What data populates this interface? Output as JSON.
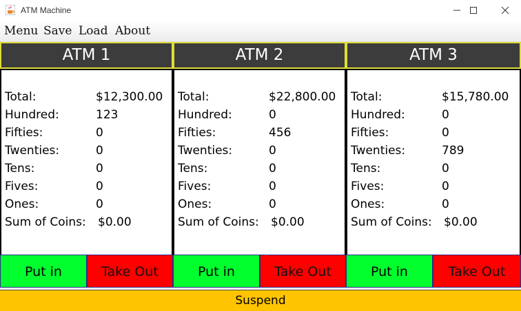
{
  "window": {
    "title": "ATM Machine"
  },
  "menu": [
    "Menu",
    "Save",
    "Load",
    "About"
  ],
  "labels": {
    "total": "Total:",
    "hundred": "Hundred:",
    "fifties": "Fifties:",
    "twenties": "Twenties:",
    "tens": "Tens:",
    "fives": "Fives:",
    "ones": "Ones:",
    "coins": "Sum of Coins:",
    "put_in": "Put in",
    "take_out": "Take Out"
  },
  "atms": [
    {
      "name": "ATM 1",
      "total": "$12,300.00",
      "hundred": "123",
      "fifties": "0",
      "twenties": "0",
      "tens": "0",
      "fives": "0",
      "ones": "0",
      "coins": "$0.00"
    },
    {
      "name": "ATM 2",
      "total": "$22,800.00",
      "hundred": "0",
      "fifties": "456",
      "twenties": "0",
      "tens": "0",
      "fives": "0",
      "ones": "0",
      "coins": "$0.00"
    },
    {
      "name": "ATM 3",
      "total": "$15,780.00",
      "hundred": "0",
      "fifties": "0",
      "twenties": "789",
      "tens": "0",
      "fives": "0",
      "ones": "0",
      "coins": "$0.00"
    }
  ],
  "suspend_label": "Suspend",
  "colors": {
    "header_bg": "#3c3c3c",
    "header_border": "#dede3a",
    "put_in": "#00ff2c",
    "take_out": "#ff0000",
    "suspend": "#ffc400"
  },
  "icons": {
    "app": "java-cup-icon",
    "minimize": "minimize-icon",
    "maximize": "maximize-icon",
    "close": "close-icon"
  }
}
